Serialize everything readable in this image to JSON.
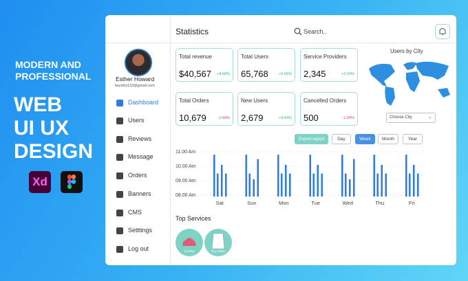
{
  "promo": {
    "lines": [
      "MODERN AND",
      "PROFESSIONAL"
    ],
    "big": [
      "WEB",
      "UI UX",
      "DESIGN"
    ],
    "xd_icon": "Xd"
  },
  "sidebar": {
    "user": {
      "name": "Esther Howard",
      "email": "laundry123@gmail.com"
    },
    "menu": [
      "Dashboard",
      "Users",
      "Reviews",
      "Message",
      "Orders",
      "Banners",
      "CMS",
      "Setttings",
      "Log out"
    ]
  },
  "header": {
    "title": "Statistics",
    "search": "Search.."
  },
  "cards": [
    {
      "label": "Total revenue",
      "value": "$40,567",
      "change": "+4.60%"
    },
    {
      "label": "Total Users",
      "value": "65,768",
      "change": "+5.66%"
    },
    {
      "label": "Service Providers",
      "value": "2,345",
      "change": "+3.34%"
    },
    {
      "label": "Total Orders",
      "value": "10,679",
      "change": "-1.54%"
    },
    {
      "label": "New Users",
      "value": "2,679",
      "change": "+3.54%"
    },
    {
      "label": "Cancelled Orders",
      "value": "500",
      "change": "-1.54%"
    }
  ],
  "map": {
    "title": "Users by City",
    "select": "Choose City"
  },
  "controls": [
    "Export report",
    "Day",
    "Week",
    "Month",
    "Year"
  ],
  "chart_data": {
    "type": "bar",
    "categories": [
      "Sat",
      "Sun",
      "Mon",
      "Tue",
      "Wed",
      "Thu",
      "Fri"
    ],
    "series": [
      {
        "color": "#2f7de1",
        "values": [
          10.8,
          10.8,
          10.8,
          10.8,
          10.8,
          10.8,
          10.8
        ]
      },
      {
        "color": "#2f7de1",
        "values": [
          9.5,
          9.5,
          9.5,
          9.5,
          9.5,
          9.5,
          9.5
        ]
      },
      {
        "color": "#2f7de1",
        "values": [
          10.1,
          9.1,
          10.1,
          10.1,
          9.1,
          10.1,
          10.1
        ]
      },
      {
        "color": "#2f7de1",
        "values": [
          9.5,
          10.5,
          9.5,
          9.5,
          10.5,
          9.5,
          9.5
        ]
      }
    ],
    "ylim": [
      7.9,
      11.2
    ],
    "yticks": [
      {
        "value": 8,
        "label": "08.00 Am"
      },
      {
        "value": 9,
        "label": "09.00 Am"
      },
      {
        "value": 10,
        "label": "10.00 Am"
      },
      {
        "value": 11,
        "label": "11.00 Am"
      }
    ],
    "grid": true
  },
  "services": {
    "title": "Top Services",
    "items": [
      "Ironing",
      "Dry Clean"
    ]
  }
}
